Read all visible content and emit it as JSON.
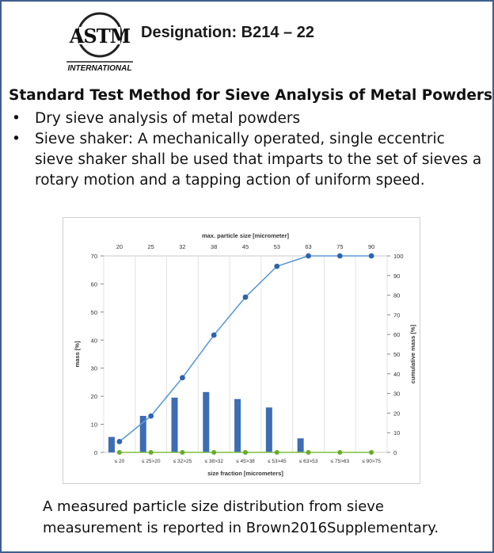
{
  "header": {
    "logo_text": "ASTM",
    "logo_subtext": "INTERNATIONAL",
    "designation": "Designation: B214 – 22"
  },
  "title": "Standard Test Method for Sieve Analysis of Metal Powders",
  "bullets": [
    "Dry sieve analysis of metal powders",
    "Sieve shaker: A mechanically operated, single eccentric sieve shaker shall be used that imparts to the set of sieves a rotary motion and a tapping action of uniform speed."
  ],
  "bullet_symbol": "•",
  "caption": "A measured particle size distribution from sieve measurement is reported in Brown2016Supplementary.",
  "chart_data": {
    "type": "bar",
    "categories": [
      "≤ 20",
      "≤ 25>20",
      "≤ 32>25",
      "≤ 38>32",
      "≤ 45>38",
      "≤ 53>45",
      "≤ 63>53",
      "≤ 75>63",
      "≤ 90>75"
    ],
    "top_categories": [
      "20",
      "25",
      "32",
      "38",
      "45",
      "53",
      "63",
      "75",
      "90"
    ],
    "xlabel": "size fraction [micrometers]",
    "x2label": "max. particle size [micrometer]",
    "ylabel": "mass [%]",
    "y2label": "cumulative mass [%]",
    "ylim": [
      0,
      70
    ],
    "yticks": [
      0,
      10,
      20,
      30,
      40,
      50,
      60,
      70
    ],
    "y2lim": [
      0,
      100
    ],
    "y2ticks": [
      0,
      10,
      20,
      30,
      40,
      50,
      60,
      70,
      80,
      90,
      100
    ],
    "grid": true,
    "series": [
      {
        "values": [
          5.5,
          13,
          19.5,
          21.5,
          19,
          16,
          5,
          0,
          0
        ],
        "type": "bar",
        "axis": "left",
        "color": "#3d6db3"
      },
      {
        "values": [
          5.5,
          18.5,
          38,
          59.7,
          79,
          94.7,
          100,
          100,
          100
        ],
        "type": "line",
        "axis": "right",
        "color": "#5b9bd5",
        "marker_color": "#2e63b0"
      },
      {
        "values": [
          0,
          0,
          0,
          0,
          0,
          0,
          0,
          0,
          0
        ],
        "type": "line",
        "axis": "left",
        "color": "#7fc040",
        "marker_color": "#6aaa2a"
      }
    ]
  }
}
